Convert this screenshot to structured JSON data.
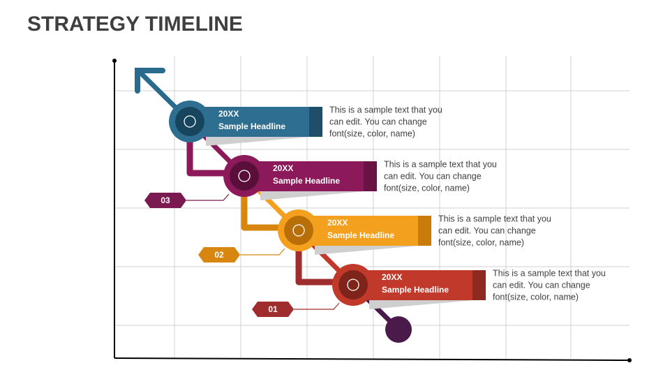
{
  "title": "STRATEGY TIMELINE",
  "steps": [
    {
      "year": "20XX",
      "headline": "Sample Headline",
      "text": [
        "This is a sample text that you",
        "can edit. You can change",
        "font(size, color, name)"
      ]
    },
    {
      "year": "20XX",
      "headline": "Sample Headline",
      "text": [
        "This is a sample text that you",
        "can edit. You can change",
        "font(size, color, name)"
      ]
    },
    {
      "year": "20XX",
      "headline": "Sample Headline",
      "text": [
        "This is a sample text that you",
        "can edit. You can change",
        "font(size, color, name)"
      ]
    },
    {
      "year": "20XX",
      "headline": "Sample Headline",
      "text": [
        "This is a sample text that you",
        "can edit. You can change",
        "font(size, color, name)"
      ]
    }
  ],
  "badges": [
    "03",
    "02",
    "01"
  ]
}
